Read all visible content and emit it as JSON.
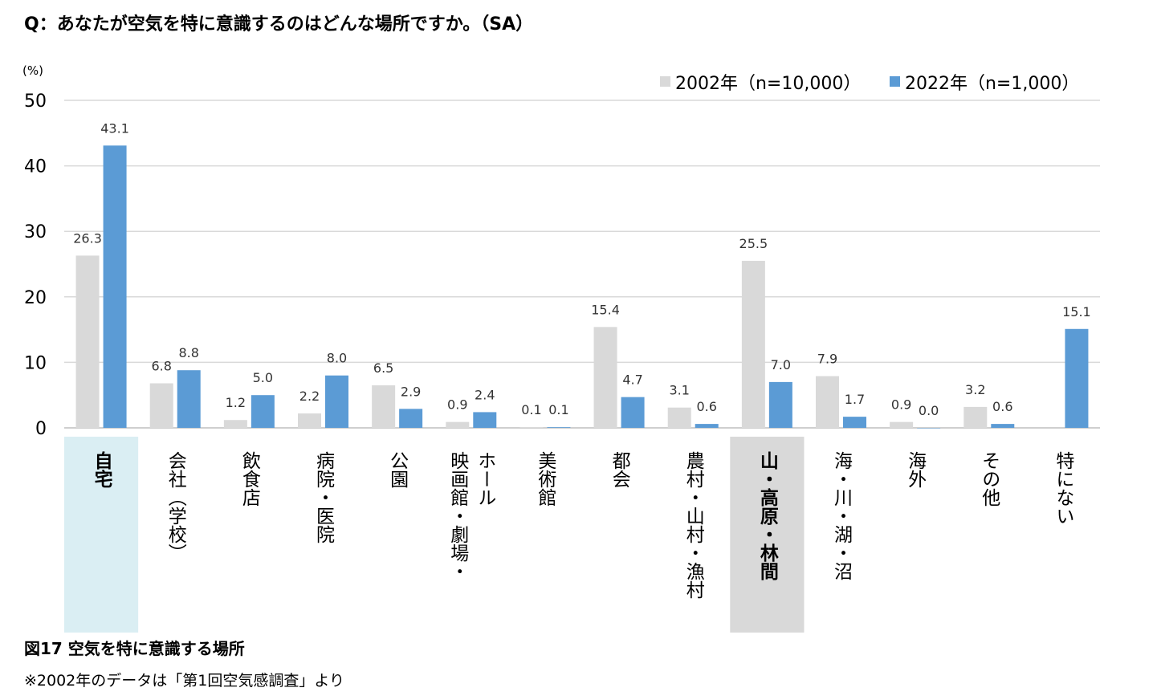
{
  "question": "Q：あなたが空気を特に意識するのはどんな場所ですか。（SA）",
  "caption": "図17  空気を特に意識する場所",
  "note": "※2002年のデータは「第1回空気感調査」より",
  "chart_data": {
    "type": "bar",
    "title": "Q：あなたが空気を特に意識するのはどんな場所ですか。（SA）",
    "ylabel": "(%)",
    "ylim": [
      0,
      50
    ],
    "yticks": [
      "0",
      "10",
      "20",
      "30",
      "40",
      "50"
    ],
    "categories": [
      "自宅",
      "会社（学校）",
      "飲食店",
      "病院・医院",
      "公園",
      "映画館・劇場・ホール",
      "美術館",
      "都会",
      "農村・山村・漁村",
      "山・高原・林間",
      "海・川・湖・沼",
      "海外",
      "その他",
      "特にない"
    ],
    "category_lines": [
      [
        "自宅"
      ],
      [
        "会社（学校）"
      ],
      [
        "飲食店"
      ],
      [
        "病院・医院"
      ],
      [
        "公園"
      ],
      [
        "ホール",
        "映画館・劇場・"
      ],
      [
        "美術館"
      ],
      [
        "都会"
      ],
      [
        "農村・山村・漁村"
      ],
      [
        "山・高原・林間"
      ],
      [
        "海・川・湖・沼"
      ],
      [
        "海外"
      ],
      [
        "その他"
      ],
      [
        "特にない"
      ]
    ],
    "highlighted": [
      0,
      9
    ],
    "highlight_colors": [
      "#daeef3",
      "#d9d9d9"
    ],
    "series": [
      {
        "name": "2002年（n=10,000）",
        "color": "#d9d9d9",
        "values": [
          26.3,
          6.8,
          1.2,
          2.2,
          6.5,
          0.9,
          0.1,
          15.4,
          3.1,
          25.5,
          7.9,
          0.9,
          3.2,
          null
        ],
        "labels": [
          "26.3",
          "6.8",
          "1.2",
          "2.2",
          "6.5",
          "0.9",
          "0.1",
          "15.4",
          "3.1",
          "25.5",
          "7.9",
          "0.9",
          "3.2",
          ""
        ]
      },
      {
        "name": "2022年（n=1,000）",
        "color": "#5b9bd5",
        "values": [
          43.1,
          8.8,
          5.0,
          8.0,
          2.9,
          2.4,
          0.1,
          4.7,
          0.6,
          7.0,
          1.7,
          0.0,
          0.6,
          15.1
        ],
        "labels": [
          "43.1",
          "8.8",
          "5.0",
          "8.0",
          "2.9",
          "2.4",
          "0.1",
          "4.7",
          "0.6",
          "7.0",
          "1.7",
          "0.0",
          "0.6",
          "15.1"
        ]
      }
    ],
    "legend": "top-right",
    "grid": true
  }
}
